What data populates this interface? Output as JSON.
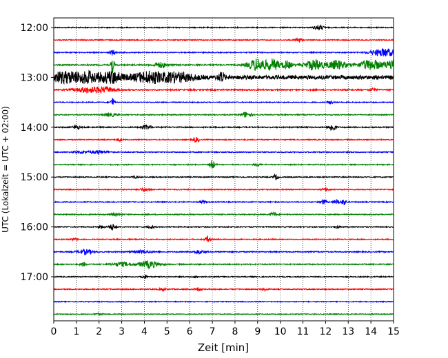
{
  "chart_data": {
    "type": "line",
    "title": "",
    "xlabel": "Zeit  [min]",
    "ylabel": "UTC (Lokalzeit = UTC + 02:00)",
    "xlim": [
      0,
      15
    ],
    "x_ticks": [
      0,
      1,
      2,
      3,
      4,
      5,
      6,
      7,
      8,
      9,
      10,
      11,
      12,
      13,
      14,
      15
    ],
    "x_tick_labels": [
      "0",
      "1",
      "2",
      "3",
      "4",
      "5",
      "6",
      "7",
      "8",
      "9",
      "10",
      "11",
      "12",
      "13",
      "14",
      "15"
    ],
    "y_tick_labels": [
      "12:00",
      "13:00",
      "14:00",
      "15:00",
      "16:00",
      "17:00"
    ],
    "y_tick_rows": [
      0,
      4,
      8,
      12,
      16,
      20
    ],
    "grid": {
      "vertical": true,
      "horizontal": false,
      "style": "dotted"
    },
    "trace_interval_minutes": 15,
    "color_cycle": [
      "#000000",
      "#ff0000",
      "#0000ff",
      "#008000"
    ],
    "traces": [
      {
        "start": "12:00",
        "color": "#000000",
        "noise": 0.22,
        "events": [
          {
            "t": 11.7,
            "a": 1.0,
            "w": 0.15
          }
        ]
      },
      {
        "start": "12:15",
        "color": "#ff0000",
        "noise": 0.22,
        "events": [
          {
            "t": 10.8,
            "a": 1.1,
            "w": 0.1
          }
        ]
      },
      {
        "start": "12:30",
        "color": "#0000ff",
        "noise": 0.22,
        "events": [
          {
            "t": 14.6,
            "a": 1.8,
            "w": 0.4
          },
          {
            "t": 2.6,
            "a": 1.2,
            "w": 0.1
          }
        ]
      },
      {
        "start": "12:45",
        "color": "#008000",
        "noise": 0.3,
        "events": [
          {
            "t": 2.6,
            "a": 3.5,
            "w": 0.05
          },
          {
            "t": 4.7,
            "a": 1.2,
            "w": 0.2
          },
          {
            "t": 9.0,
            "a": 2.8,
            "w": 0.3
          },
          {
            "t": 9.7,
            "a": 2.4,
            "w": 0.2
          },
          {
            "t": 10.3,
            "a": 1.8,
            "w": 0.15
          },
          {
            "t": 11.5,
            "a": 2.4,
            "w": 0.3
          },
          {
            "t": 12.5,
            "a": 2.0,
            "w": 0.3
          },
          {
            "t": 14.0,
            "a": 2.2,
            "w": 0.4
          },
          {
            "t": 15.0,
            "a": 2.5,
            "w": 0.2
          }
        ]
      },
      {
        "start": "13:00",
        "color": "#000000",
        "noise": 0.9,
        "events": [
          {
            "t": 0.5,
            "a": 2.2,
            "w": 0.5
          },
          {
            "t": 1.6,
            "a": 2.0,
            "w": 0.4
          },
          {
            "t": 2.6,
            "a": 2.4,
            "w": 0.3
          },
          {
            "t": 4.2,
            "a": 2.2,
            "w": 0.5
          },
          {
            "t": 5.5,
            "a": 1.8,
            "w": 0.5
          },
          {
            "t": 7.4,
            "a": 2.0,
            "w": 0.1
          }
        ]
      },
      {
        "start": "13:15",
        "color": "#ff0000",
        "noise": 0.3,
        "events": [
          {
            "t": 1.5,
            "a": 1.2,
            "w": 0.4
          },
          {
            "t": 2.3,
            "a": 1.1,
            "w": 0.3
          },
          {
            "t": 14.1,
            "a": 0.8,
            "w": 0.1
          }
        ]
      },
      {
        "start": "13:30",
        "color": "#0000ff",
        "noise": 0.22,
        "events": [
          {
            "t": 2.6,
            "a": 2.4,
            "w": 0.05
          },
          {
            "t": 12.2,
            "a": 0.7,
            "w": 0.1
          }
        ]
      },
      {
        "start": "13:45",
        "color": "#008000",
        "noise": 0.22,
        "events": [
          {
            "t": 8.5,
            "a": 1.3,
            "w": 0.15
          },
          {
            "t": 2.5,
            "a": 0.7,
            "w": 0.2
          }
        ]
      },
      {
        "start": "14:00",
        "color": "#000000",
        "noise": 0.25,
        "events": [
          {
            "t": 1.0,
            "a": 1.0,
            "w": 0.1
          },
          {
            "t": 4.1,
            "a": 1.0,
            "w": 0.15
          },
          {
            "t": 12.3,
            "a": 2.0,
            "w": 0.1
          }
        ]
      },
      {
        "start": "14:15",
        "color": "#ff0000",
        "noise": 0.22,
        "events": [
          {
            "t": 6.3,
            "a": 1.0,
            "w": 0.1
          },
          {
            "t": 2.9,
            "a": 0.6,
            "w": 0.1
          }
        ]
      },
      {
        "start": "14:30",
        "color": "#0000ff",
        "noise": 0.22,
        "events": [
          {
            "t": 2.0,
            "a": 0.7,
            "w": 0.3
          },
          {
            "t": 1.2,
            "a": 0.5,
            "w": 0.2
          }
        ]
      },
      {
        "start": "14:45",
        "color": "#008000",
        "noise": 0.22,
        "events": [
          {
            "t": 7.0,
            "a": 2.0,
            "w": 0.08
          },
          {
            "t": 9.0,
            "a": 0.7,
            "w": 0.1
          }
        ]
      },
      {
        "start": "15:00",
        "color": "#000000",
        "noise": 0.22,
        "events": [
          {
            "t": 9.8,
            "a": 1.2,
            "w": 0.08
          },
          {
            "t": 3.6,
            "a": 0.5,
            "w": 0.1
          }
        ]
      },
      {
        "start": "15:15",
        "color": "#ff0000",
        "noise": 0.22,
        "events": [
          {
            "t": 12.0,
            "a": 0.7,
            "w": 0.1
          },
          {
            "t": 4.0,
            "a": 0.6,
            "w": 0.2
          }
        ]
      },
      {
        "start": "15:30",
        "color": "#0000ff",
        "noise": 0.22,
        "events": [
          {
            "t": 11.9,
            "a": 1.0,
            "w": 0.1
          },
          {
            "t": 12.5,
            "a": 0.9,
            "w": 0.1
          },
          {
            "t": 12.8,
            "a": 1.1,
            "w": 0.1
          },
          {
            "t": 6.6,
            "a": 0.6,
            "w": 0.1
          }
        ]
      },
      {
        "start": "15:45",
        "color": "#008000",
        "noise": 0.22,
        "events": [
          {
            "t": 9.7,
            "a": 0.8,
            "w": 0.1
          },
          {
            "t": 2.7,
            "a": 0.5,
            "w": 0.2
          }
        ]
      },
      {
        "start": "16:00",
        "color": "#000000",
        "noise": 0.22,
        "events": [
          {
            "t": 2.6,
            "a": 1.3,
            "w": 0.1
          },
          {
            "t": 2.1,
            "a": 0.6,
            "w": 0.1
          },
          {
            "t": 4.3,
            "a": 0.7,
            "w": 0.1
          },
          {
            "t": 12.5,
            "a": 0.5,
            "w": 0.1
          }
        ]
      },
      {
        "start": "16:15",
        "color": "#ff0000",
        "noise": 0.22,
        "events": [
          {
            "t": 6.8,
            "a": 1.4,
            "w": 0.08
          },
          {
            "t": 0.9,
            "a": 0.5,
            "w": 0.1
          }
        ]
      },
      {
        "start": "16:30",
        "color": "#0000ff",
        "noise": 0.25,
        "events": [
          {
            "t": 1.4,
            "a": 1.0,
            "w": 0.25
          },
          {
            "t": 3.9,
            "a": 0.6,
            "w": 0.3
          },
          {
            "t": 6.4,
            "a": 0.8,
            "w": 0.2
          }
        ]
      },
      {
        "start": "16:45",
        "color": "#008000",
        "noise": 0.25,
        "events": [
          {
            "t": 1.3,
            "a": 1.0,
            "w": 0.08
          },
          {
            "t": 3.0,
            "a": 0.9,
            "w": 0.3
          },
          {
            "t": 4.2,
            "a": 1.6,
            "w": 0.3
          }
        ]
      },
      {
        "start": "17:00",
        "color": "#000000",
        "noise": 0.22,
        "events": [
          {
            "t": 4.0,
            "a": 1.0,
            "w": 0.08
          },
          {
            "t": 6.3,
            "a": 0.5,
            "w": 0.1
          }
        ]
      },
      {
        "start": "17:15",
        "color": "#ff0000",
        "noise": 0.22,
        "events": [
          {
            "t": 4.8,
            "a": 0.7,
            "w": 0.1
          },
          {
            "t": 6.4,
            "a": 0.7,
            "w": 0.1
          },
          {
            "t": 9.3,
            "a": 0.6,
            "w": 0.1
          }
        ]
      },
      {
        "start": "17:30",
        "color": "#0000ff",
        "noise": 0.2,
        "events": []
      },
      {
        "start": "17:45",
        "color": "#008000",
        "noise": 0.2,
        "events": [
          {
            "t": 2.0,
            "a": 0.5,
            "w": 0.1
          }
        ]
      }
    ]
  }
}
